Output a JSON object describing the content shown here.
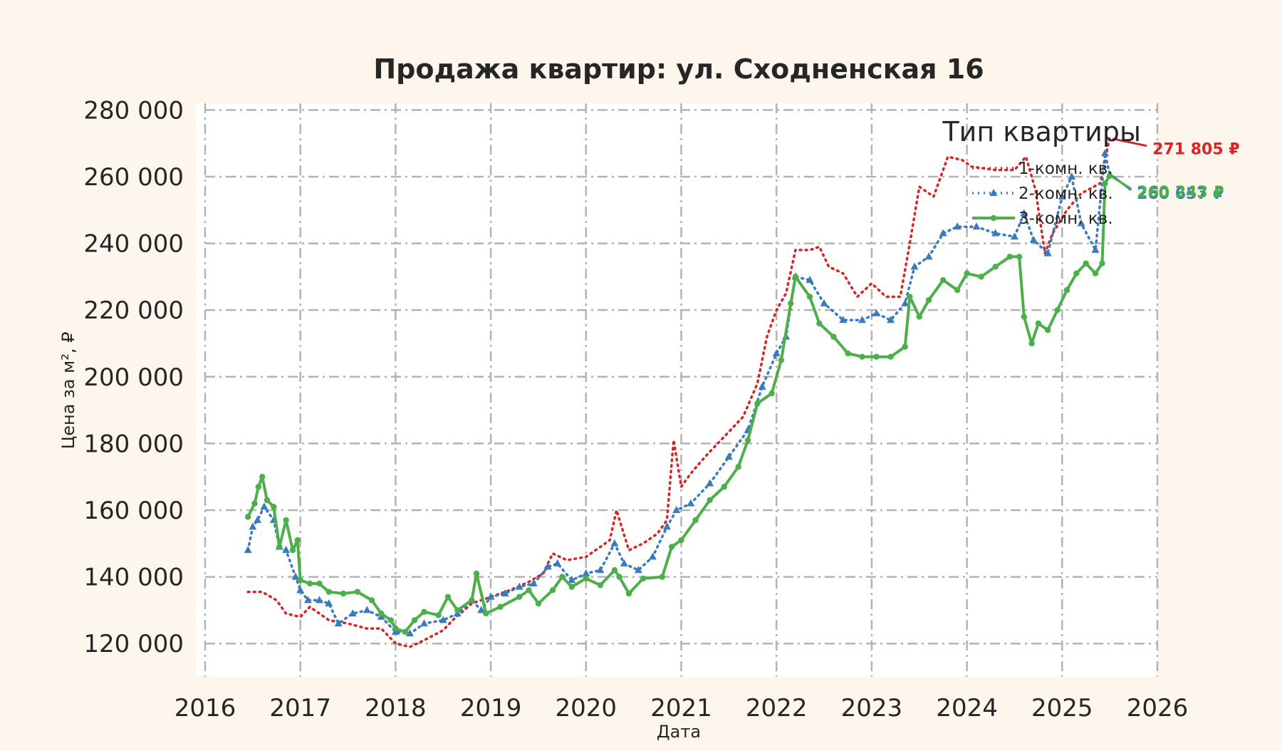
{
  "chart_data": {
    "type": "line",
    "title": "Продажа квартир: ул. Сходненская 16",
    "xlabel": "Дата",
    "ylabel": "Цена за м², ₽",
    "xlim": [
      2016.0,
      2026.0
    ],
    "ylim": [
      110000,
      282000
    ],
    "x_ticks": [
      "2016",
      "2017",
      "2018",
      "2019",
      "2020",
      "2021",
      "2022",
      "2023",
      "2024",
      "2025",
      "2026"
    ],
    "y_ticks": [
      "120 000",
      "140 000",
      "160 000",
      "180 000",
      "200 000",
      "220 000",
      "240 000",
      "260 000",
      "280 000"
    ],
    "grid": true,
    "legend": {
      "title": "Тип квартиры",
      "position": "top-right"
    },
    "series": [
      {
        "name": "1-комн. кв.",
        "color": "#d62728",
        "style": "dotted",
        "marker": "none",
        "end_label": "271 805 ₽",
        "points": [
          [
            2016.45,
            135500
          ],
          [
            2016.6,
            135500
          ],
          [
            2016.75,
            133000
          ],
          [
            2016.85,
            129000
          ],
          [
            2017.0,
            128000
          ],
          [
            2017.1,
            131000
          ],
          [
            2017.3,
            127000
          ],
          [
            2017.5,
            126000
          ],
          [
            2017.7,
            124500
          ],
          [
            2017.85,
            124500
          ],
          [
            2018.0,
            120000
          ],
          [
            2018.15,
            119000
          ],
          [
            2018.3,
            121000
          ],
          [
            2018.5,
            124000
          ],
          [
            2018.6,
            127000
          ],
          [
            2018.8,
            132000
          ],
          [
            2019.0,
            134000
          ],
          [
            2019.2,
            136000
          ],
          [
            2019.4,
            138500
          ],
          [
            2019.55,
            141000
          ],
          [
            2019.65,
            147000
          ],
          [
            2019.8,
            145000
          ],
          [
            2020.0,
            146000
          ],
          [
            2020.15,
            149000
          ],
          [
            2020.25,
            151000
          ],
          [
            2020.32,
            160000
          ],
          [
            2020.45,
            148000
          ],
          [
            2020.6,
            150000
          ],
          [
            2020.75,
            153000
          ],
          [
            2020.85,
            157000
          ],
          [
            2020.92,
            181000
          ],
          [
            2021.0,
            167000
          ],
          [
            2021.1,
            171000
          ],
          [
            2021.25,
            176000
          ],
          [
            2021.45,
            182000
          ],
          [
            2021.65,
            188000
          ],
          [
            2021.8,
            198000
          ],
          [
            2021.9,
            212000
          ],
          [
            2022.0,
            220000
          ],
          [
            2022.1,
            225000
          ],
          [
            2022.2,
            238000
          ],
          [
            2022.35,
            238000
          ],
          [
            2022.45,
            239000
          ],
          [
            2022.55,
            233000
          ],
          [
            2022.7,
            231000
          ],
          [
            2022.85,
            224000
          ],
          [
            2023.0,
            228000
          ],
          [
            2023.15,
            224000
          ],
          [
            2023.3,
            224000
          ],
          [
            2023.4,
            240000
          ],
          [
            2023.5,
            257000
          ],
          [
            2023.65,
            254000
          ],
          [
            2023.8,
            266000
          ],
          [
            2023.95,
            265000
          ],
          [
            2024.05,
            263000
          ],
          [
            2024.3,
            262000
          ],
          [
            2024.5,
            262000
          ],
          [
            2024.62,
            266000
          ],
          [
            2024.72,
            256000
          ],
          [
            2024.82,
            237000
          ],
          [
            2024.9,
            243000
          ],
          [
            2025.05,
            250000
          ],
          [
            2025.2,
            255000
          ],
          [
            2025.4,
            258000
          ],
          [
            2025.5,
            271805
          ]
        ]
      },
      {
        "name": "2-комн. кв.",
        "color": "#3a7bbf",
        "style": "dotted",
        "marker": "triangle",
        "end_label": "260 657 ₽",
        "points": [
          [
            2016.45,
            148000
          ],
          [
            2016.5,
            155000
          ],
          [
            2016.55,
            157000
          ],
          [
            2016.62,
            161000
          ],
          [
            2016.72,
            157000
          ],
          [
            2016.78,
            149000
          ],
          [
            2016.85,
            148000
          ],
          [
            2016.95,
            140000
          ],
          [
            2017.0,
            136000
          ],
          [
            2017.08,
            133000
          ],
          [
            2017.2,
            133000
          ],
          [
            2017.3,
            132000
          ],
          [
            2017.4,
            126000
          ],
          [
            2017.55,
            129000
          ],
          [
            2017.7,
            130000
          ],
          [
            2017.85,
            128000
          ],
          [
            2018.0,
            123500
          ],
          [
            2018.15,
            123000
          ],
          [
            2018.3,
            126000
          ],
          [
            2018.5,
            127000
          ],
          [
            2018.65,
            129000
          ],
          [
            2018.8,
            133000
          ],
          [
            2018.9,
            130000
          ],
          [
            2019.0,
            134000
          ],
          [
            2019.15,
            135000
          ],
          [
            2019.3,
            137000
          ],
          [
            2019.45,
            138000
          ],
          [
            2019.6,
            143000
          ],
          [
            2019.7,
            144000
          ],
          [
            2019.85,
            139000
          ],
          [
            2020.0,
            141000
          ],
          [
            2020.15,
            142000
          ],
          [
            2020.3,
            150000
          ],
          [
            2020.4,
            144000
          ],
          [
            2020.55,
            142000
          ],
          [
            2020.7,
            146000
          ],
          [
            2020.85,
            155000
          ],
          [
            2020.95,
            160000
          ],
          [
            2021.1,
            162000
          ],
          [
            2021.3,
            168000
          ],
          [
            2021.5,
            176000
          ],
          [
            2021.7,
            184000
          ],
          [
            2021.85,
            197000
          ],
          [
            2022.0,
            207000
          ],
          [
            2022.1,
            212000
          ],
          [
            2022.2,
            230000
          ],
          [
            2022.35,
            229000
          ],
          [
            2022.5,
            222000
          ],
          [
            2022.7,
            217000
          ],
          [
            2022.9,
            217000
          ],
          [
            2023.05,
            219000
          ],
          [
            2023.2,
            217000
          ],
          [
            2023.35,
            222000
          ],
          [
            2023.45,
            233000
          ],
          [
            2023.6,
            236000
          ],
          [
            2023.75,
            243000
          ],
          [
            2023.9,
            245000
          ],
          [
            2024.1,
            245000
          ],
          [
            2024.3,
            243000
          ],
          [
            2024.5,
            242000
          ],
          [
            2024.6,
            249000
          ],
          [
            2024.7,
            241000
          ],
          [
            2024.85,
            237000
          ],
          [
            2025.0,
            254000
          ],
          [
            2025.1,
            260000
          ],
          [
            2025.2,
            246000
          ],
          [
            2025.35,
            238000
          ],
          [
            2025.45,
            267000
          ],
          [
            2025.5,
            260657
          ]
        ]
      },
      {
        "name": "3-комн. кв.",
        "color": "#4daf4a",
        "style": "solid",
        "marker": "circle",
        "end_label": "260 243 ₽",
        "points": [
          [
            2016.45,
            158000
          ],
          [
            2016.52,
            162000
          ],
          [
            2016.56,
            167000
          ],
          [
            2016.6,
            170000
          ],
          [
            2016.65,
            163000
          ],
          [
            2016.72,
            161000
          ],
          [
            2016.78,
            149000
          ],
          [
            2016.85,
            157000
          ],
          [
            2016.92,
            148000
          ],
          [
            2016.97,
            151000
          ],
          [
            2017.0,
            139000
          ],
          [
            2017.1,
            138000
          ],
          [
            2017.2,
            138000
          ],
          [
            2017.3,
            135500
          ],
          [
            2017.45,
            135000
          ],
          [
            2017.6,
            135500
          ],
          [
            2017.75,
            133000
          ],
          [
            2017.85,
            129000
          ],
          [
            2017.95,
            127000
          ],
          [
            2018.0,
            124500
          ],
          [
            2018.1,
            123500
          ],
          [
            2018.2,
            127000
          ],
          [
            2018.3,
            129500
          ],
          [
            2018.45,
            128500
          ],
          [
            2018.55,
            134000
          ],
          [
            2018.65,
            130000
          ],
          [
            2018.8,
            133000
          ],
          [
            2018.85,
            141000
          ],
          [
            2018.95,
            129000
          ],
          [
            2019.1,
            131000
          ],
          [
            2019.3,
            134000
          ],
          [
            2019.4,
            136000
          ],
          [
            2019.5,
            132000
          ],
          [
            2019.65,
            136000
          ],
          [
            2019.75,
            140000
          ],
          [
            2019.85,
            137000
          ],
          [
            2020.0,
            139500
          ],
          [
            2020.15,
            137500
          ],
          [
            2020.3,
            142000
          ],
          [
            2020.35,
            140000
          ],
          [
            2020.45,
            135000
          ],
          [
            2020.6,
            139500
          ],
          [
            2020.8,
            140000
          ],
          [
            2020.9,
            149000
          ],
          [
            2021.0,
            151000
          ],
          [
            2021.15,
            157000
          ],
          [
            2021.3,
            163000
          ],
          [
            2021.45,
            167000
          ],
          [
            2021.6,
            173000
          ],
          [
            2021.7,
            181000
          ],
          [
            2021.8,
            192000
          ],
          [
            2021.95,
            195000
          ],
          [
            2022.05,
            205000
          ],
          [
            2022.15,
            222000
          ],
          [
            2022.2,
            230000
          ],
          [
            2022.35,
            224000
          ],
          [
            2022.45,
            216000
          ],
          [
            2022.6,
            212000
          ],
          [
            2022.75,
            207000
          ],
          [
            2022.9,
            206000
          ],
          [
            2023.05,
            206000
          ],
          [
            2023.2,
            206000
          ],
          [
            2023.35,
            209000
          ],
          [
            2023.4,
            224000
          ],
          [
            2023.5,
            218000
          ],
          [
            2023.6,
            223000
          ],
          [
            2023.75,
            229000
          ],
          [
            2023.9,
            226000
          ],
          [
            2024.0,
            231000
          ],
          [
            2024.15,
            230000
          ],
          [
            2024.3,
            233000
          ],
          [
            2024.45,
            236000
          ],
          [
            2024.55,
            236000
          ],
          [
            2024.6,
            218000
          ],
          [
            2024.68,
            210000
          ],
          [
            2024.75,
            216000
          ],
          [
            2024.85,
            214000
          ],
          [
            2024.95,
            220000
          ],
          [
            2025.05,
            226000
          ],
          [
            2025.15,
            231000
          ],
          [
            2025.25,
            234000
          ],
          [
            2025.35,
            231000
          ],
          [
            2025.42,
            234000
          ],
          [
            2025.45,
            258000
          ],
          [
            2025.5,
            260243
          ]
        ]
      }
    ]
  }
}
